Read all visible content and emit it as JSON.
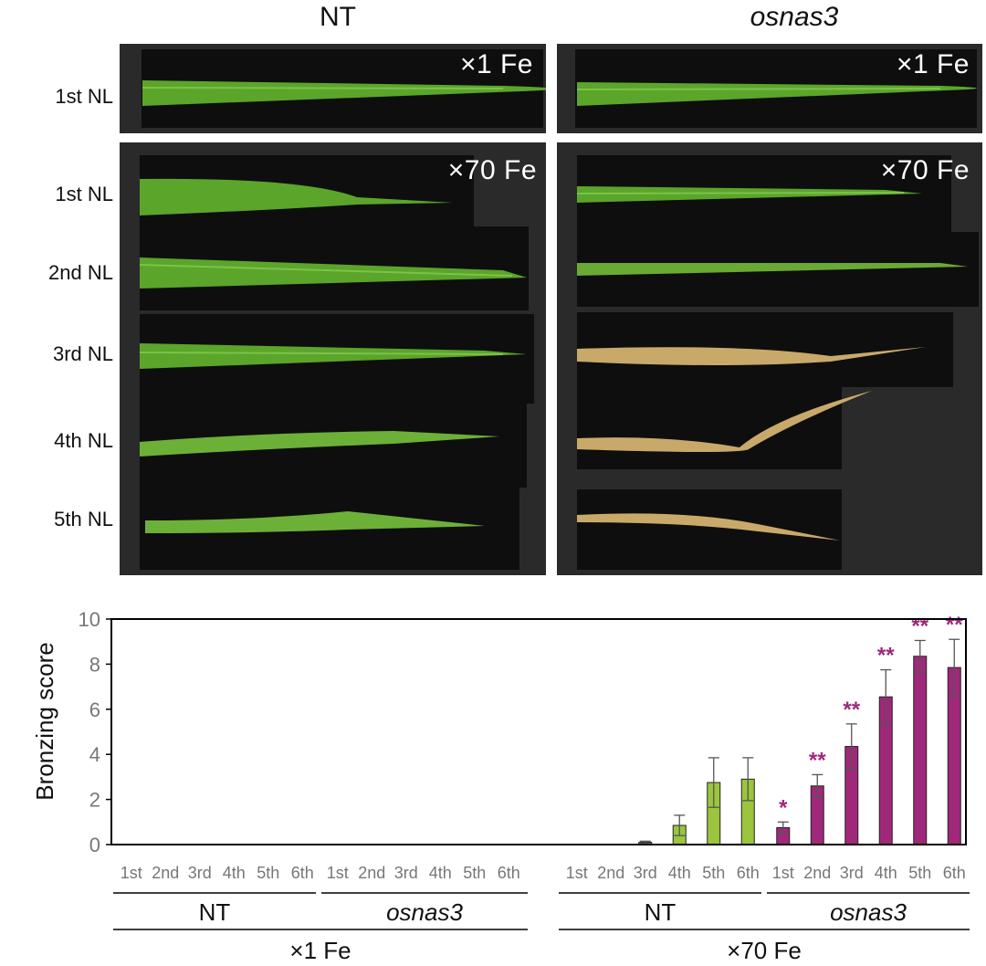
{
  "photo_panel": {
    "col_headers": {
      "nt": "NT",
      "mutant": "osnas3"
    },
    "fe_labels": {
      "x1": "×1 Fe",
      "x70": "×70 Fe"
    },
    "row_labels": [
      "1st NL",
      "1st NL",
      "2nd NL",
      "3rd NL",
      "4th NL",
      "5th NL"
    ],
    "colors": {
      "healthy_leaf": "#5aa52a",
      "bronzed_leaf": "#c9a96a",
      "background": "#0e0e0e"
    }
  },
  "chart_data": {
    "type": "bar",
    "ylabel": "Bronzing score",
    "ylim": [
      0,
      10
    ],
    "yticks": [
      "0",
      "2",
      "4",
      "6",
      "8",
      "10"
    ],
    "categories": [
      "1st",
      "2nd",
      "3rd",
      "4th",
      "5th",
      "6th"
    ],
    "groups": [
      {
        "genotype": "NT",
        "fe": "×1 Fe",
        "color": "#9bc53d",
        "values": [
          0,
          0,
          0,
          0,
          0,
          0
        ],
        "errors": [
          0,
          0,
          0,
          0,
          0,
          0
        ],
        "sig": [
          "",
          "",
          "",
          "",
          "",
          ""
        ]
      },
      {
        "genotype": "osnas3",
        "fe": "×1 Fe",
        "color": "#a0287a",
        "values": [
          0,
          0,
          0,
          0,
          0,
          0
        ],
        "errors": [
          0,
          0,
          0,
          0,
          0,
          0
        ],
        "sig": [
          "",
          "",
          "",
          "",
          "",
          ""
        ]
      },
      {
        "genotype": "NT",
        "fe": "×70 Fe",
        "color": "#9bc53d",
        "values": [
          0,
          0,
          0.1,
          0.85,
          2.75,
          2.9
        ],
        "errors": [
          0,
          0,
          0.05,
          0.45,
          1.1,
          0.95
        ],
        "sig": [
          "",
          "",
          "",
          "",
          "",
          ""
        ]
      },
      {
        "genotype": "osnas3",
        "fe": "×70 Fe",
        "color": "#a0287a",
        "values": [
          0.75,
          2.6,
          4.35,
          6.55,
          8.35,
          7.85
        ],
        "errors": [
          0.25,
          0.5,
          1.0,
          1.2,
          0.7,
          1.25
        ],
        "sig": [
          "*",
          "**",
          "**",
          "**",
          "**",
          "**"
        ]
      }
    ],
    "genotype_labels": [
      "NT",
      "osnas3",
      "NT",
      "osnas3"
    ],
    "fe_labels": [
      "×1 Fe",
      "×70 Fe"
    ],
    "sig_color": "#a0287a"
  }
}
